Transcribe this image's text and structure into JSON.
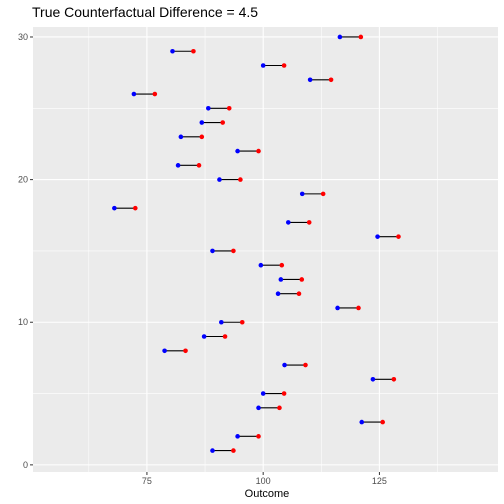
{
  "chart_data": {
    "type": "scatter",
    "title": "True Counterfactual Difference = 4.5",
    "xlabel": "Outcome",
    "ylabel": "",
    "xlim": [
      50.5,
      150.5
    ],
    "ylim": [
      -0.5,
      30.7
    ],
    "x_ticks": [
      75,
      100,
      125
    ],
    "y_ticks": [
      0,
      10,
      20,
      30
    ],
    "grid": true,
    "legend": "none",
    "colors": {
      "blue": "#0000ff",
      "red": "#ff0000",
      "segment": "#000000",
      "panel": "#ebebeb",
      "grid": "#ffffff"
    },
    "series": [
      {
        "color": "blue",
        "points": [
          {
            "y": 1,
            "x": 89.1
          },
          {
            "y": 2,
            "x": 94.5
          },
          {
            "y": 3,
            "x": 121.2
          },
          {
            "y": 4,
            "x": 99.0
          },
          {
            "y": 5,
            "x": 100.0
          },
          {
            "y": 6,
            "x": 123.6
          },
          {
            "y": 7,
            "x": 104.6
          },
          {
            "y": 8,
            "x": 78.8
          },
          {
            "y": 9,
            "x": 87.3
          },
          {
            "y": 10,
            "x": 91.0
          },
          {
            "y": 11,
            "x": 116.0
          },
          {
            "y": 12,
            "x": 103.2
          },
          {
            "y": 13,
            "x": 103.8
          },
          {
            "y": 14,
            "x": 99.5
          },
          {
            "y": 15,
            "x": 89.1
          },
          {
            "y": 16,
            "x": 124.6
          },
          {
            "y": 17,
            "x": 105.4
          },
          {
            "y": 18,
            "x": 68.0
          },
          {
            "y": 19,
            "x": 108.4
          },
          {
            "y": 20,
            "x": 90.6
          },
          {
            "y": 21,
            "x": 81.7
          },
          {
            "y": 22,
            "x": 94.5
          },
          {
            "y": 23,
            "x": 82.3
          },
          {
            "y": 24,
            "x": 86.8
          },
          {
            "y": 25,
            "x": 88.2
          },
          {
            "y": 26,
            "x": 72.2
          },
          {
            "y": 27,
            "x": 110.1
          },
          {
            "y": 28,
            "x": 100.0
          },
          {
            "y": 29,
            "x": 80.5
          },
          {
            "y": 30,
            "x": 116.5
          }
        ]
      },
      {
        "color": "red",
        "points": [
          {
            "y": 1,
            "x": 93.6
          },
          {
            "y": 2,
            "x": 99.0
          },
          {
            "y": 3,
            "x": 125.7
          },
          {
            "y": 4,
            "x": 103.5
          },
          {
            "y": 5,
            "x": 104.5
          },
          {
            "y": 6,
            "x": 128.1
          },
          {
            "y": 7,
            "x": 109.1
          },
          {
            "y": 8,
            "x": 83.3
          },
          {
            "y": 9,
            "x": 91.8
          },
          {
            "y": 10,
            "x": 95.5
          },
          {
            "y": 11,
            "x": 120.5
          },
          {
            "y": 12,
            "x": 107.7
          },
          {
            "y": 13,
            "x": 108.3
          },
          {
            "y": 14,
            "x": 104.0
          },
          {
            "y": 15,
            "x": 93.6
          },
          {
            "y": 16,
            "x": 129.1
          },
          {
            "y": 17,
            "x": 109.9
          },
          {
            "y": 18,
            "x": 72.5
          },
          {
            "y": 19,
            "x": 112.9
          },
          {
            "y": 20,
            "x": 95.1
          },
          {
            "y": 21,
            "x": 86.2
          },
          {
            "y": 22,
            "x": 99.0
          },
          {
            "y": 23,
            "x": 86.8
          },
          {
            "y": 24,
            "x": 91.3
          },
          {
            "y": 25,
            "x": 92.7
          },
          {
            "y": 26,
            "x": 76.7
          },
          {
            "y": 27,
            "x": 114.6
          },
          {
            "y": 28,
            "x": 104.5
          },
          {
            "y": 29,
            "x": 85.0
          },
          {
            "y": 30,
            "x": 121.0
          }
        ]
      }
    ]
  }
}
